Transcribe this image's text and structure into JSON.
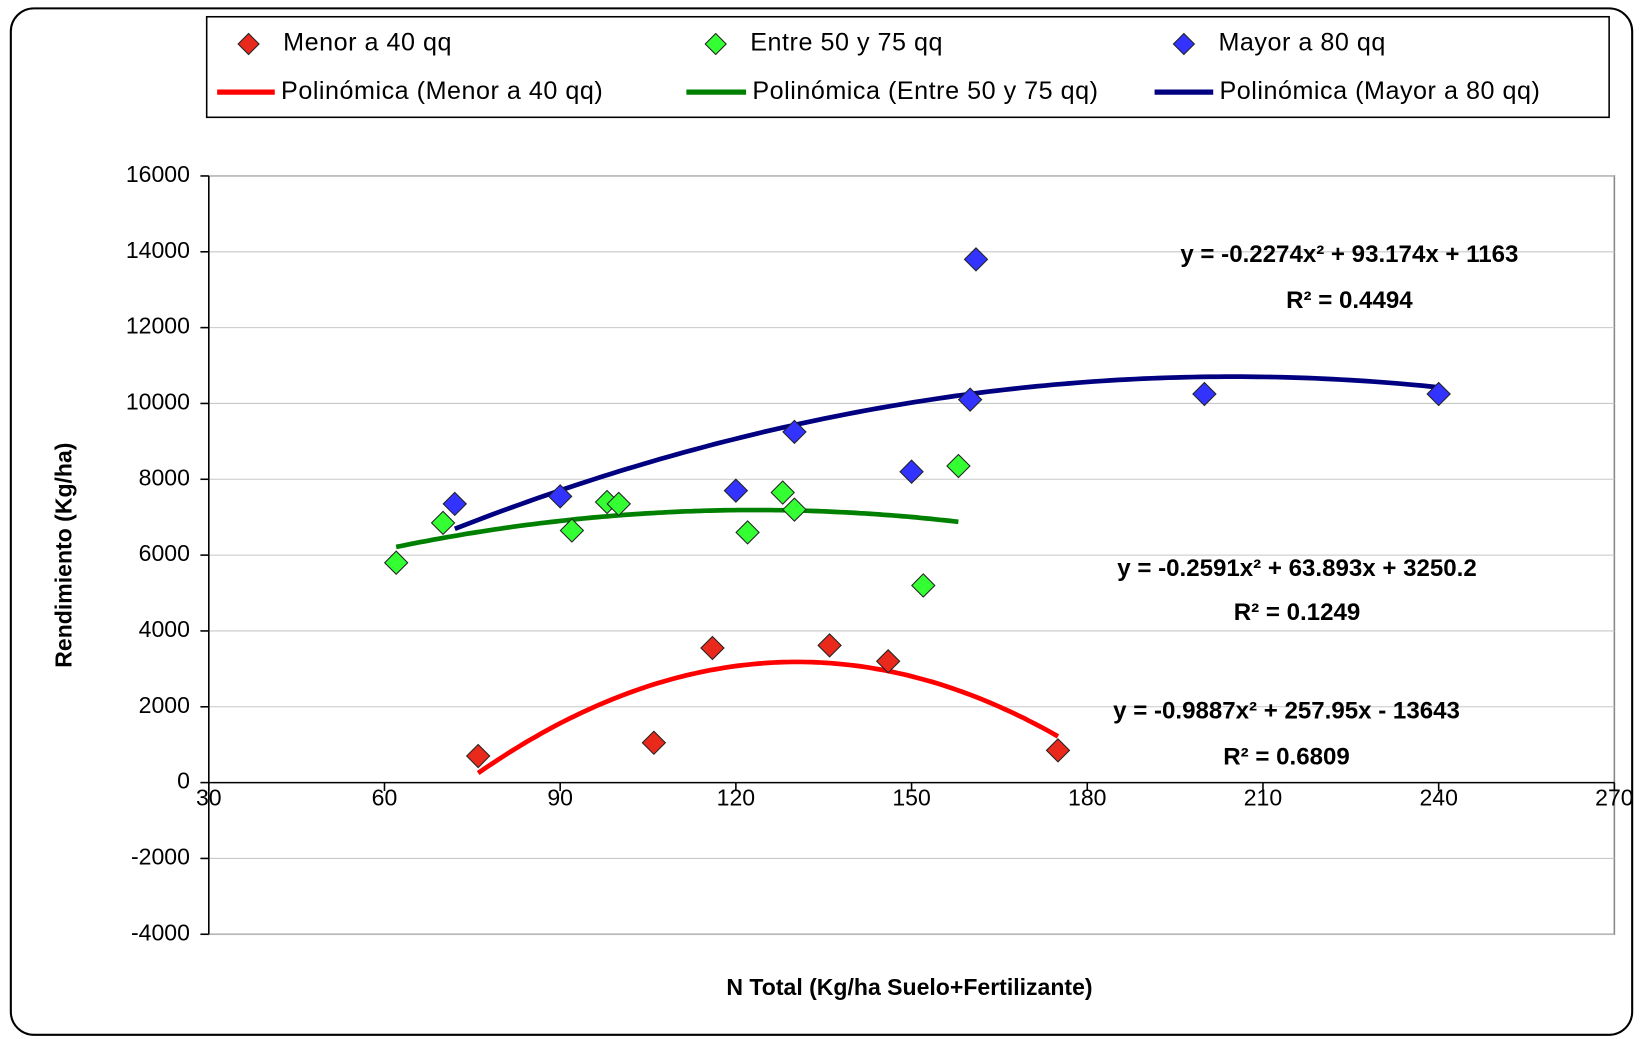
{
  "chart_data": {
    "type": "scatter",
    "xlabel": "N Total (Kg/ha Suelo+Fertilizante)",
    "ylabel": "Rendimiento (Kg/ha)",
    "xlim": [
      30,
      270
    ],
    "ylim": [
      -4000,
      16000
    ],
    "xticks": [
      30,
      60,
      90,
      120,
      150,
      180,
      210,
      240,
      270
    ],
    "yticks": [
      -4000,
      -2000,
      0,
      2000,
      4000,
      6000,
      8000,
      10000,
      12000,
      14000,
      16000
    ],
    "grid": true,
    "legend": "top",
    "series": [
      {
        "name": "Menor a 40 qq",
        "color": "#e8291c",
        "x": [
          76,
          106,
          116,
          136,
          146,
          175
        ],
        "values": [
          700,
          1050,
          3550,
          3620,
          3200,
          850
        ],
        "trendline": {
          "name": "Polinómica (Menor a 40 qq)",
          "color": "#ff0000",
          "label_color": "#ff0000",
          "coefficients": [
            -0.9887,
            257.95,
            -13643
          ],
          "equation": "y = -0.9887x² + 257.95x - 13643",
          "r2": "R² = 0.6809"
        }
      },
      {
        "name": "Entre 50 y 75 qq",
        "color": "#33ff33",
        "x": [
          62,
          70,
          92,
          98,
          100,
          122,
          128,
          130,
          152,
          158
        ],
        "values": [
          5800,
          6850,
          6650,
          7400,
          7350,
          6600,
          7650,
          7200,
          5200,
          8350
        ],
        "trendline": {
          "name": "Polinómica (Entre 50 y 75 qq)",
          "color": "#008000",
          "label_color": "#1e5c1e",
          "coefficients": [
            -0.2591,
            63.893,
            3250.2
          ],
          "equation": "y = -0.2591x² + 63.893x + 3250.2",
          "r2": "R² = 0.1249"
        }
      },
      {
        "name": "Mayor a 80 qq",
        "color": "#3333ff",
        "x": [
          72,
          90,
          120,
          130,
          150,
          160,
          161,
          200,
          240
        ],
        "values": [
          7350,
          7550,
          7700,
          9250,
          8200,
          10100,
          13800,
          10250,
          10250
        ],
        "trendline": {
          "name": "Polinómica (Mayor a 80 qq)",
          "color": "#000080",
          "label_color": "#1a1a8c",
          "coefficients": [
            -0.2274,
            93.174,
            1163
          ],
          "equation": "y = -0.2274x² + 93.174x + 1163",
          "r2": "R² = 0.4494"
        }
      }
    ]
  }
}
